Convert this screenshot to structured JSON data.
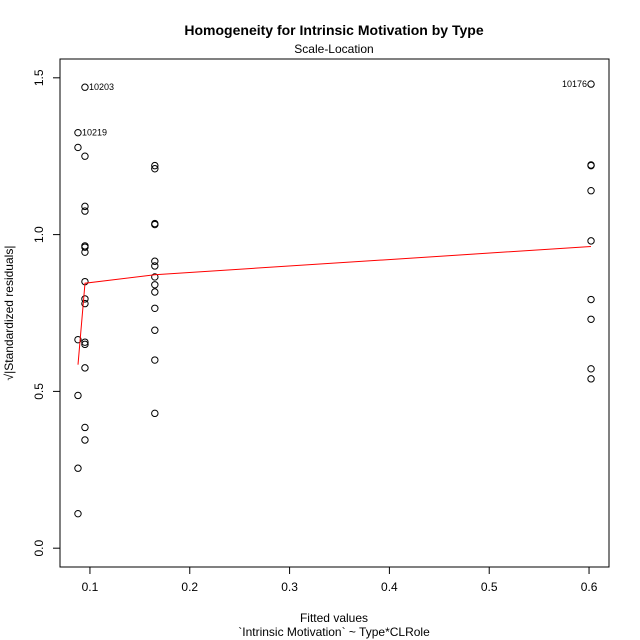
{
  "chart_data": {
    "type": "scatter",
    "title": "Homogeneity for Intrinsic Motivation by Type",
    "subtitle": "Scale-Location",
    "xlabel": "Fitted values",
    "xlabel2": "`Intrinsic Motivation` ~ Type*CLRole",
    "ylabel": "√|Standardized residuals|",
    "xlim": [
      0.07,
      0.62
    ],
    "ylim": [
      -0.06,
      1.56
    ],
    "x_ticks": [
      "0.1",
      "0.2",
      "0.3",
      "0.4",
      "0.5",
      "0.6"
    ],
    "x_tick_values": [
      0.1,
      0.2,
      0.3,
      0.4,
      0.5,
      0.6
    ],
    "y_ticks": [
      "0.0",
      "0.5",
      "1.0",
      "1.5"
    ],
    "y_tick_values": [
      0.0,
      0.5,
      1.0,
      1.5
    ],
    "grid": false,
    "point_color": "#000000",
    "line_color": "#ff0000",
    "points": [
      {
        "x": 0.088,
        "y": 0.11
      },
      {
        "x": 0.088,
        "y": 0.255
      },
      {
        "x": 0.088,
        "y": 0.487
      },
      {
        "x": 0.088,
        "y": 0.665
      },
      {
        "x": 0.088,
        "y": 1.278
      },
      {
        "x": 0.088,
        "y": 1.325,
        "label": "10219"
      },
      {
        "x": 0.095,
        "y": 0.345
      },
      {
        "x": 0.095,
        "y": 0.385
      },
      {
        "x": 0.095,
        "y": 0.575
      },
      {
        "x": 0.095,
        "y": 0.65
      },
      {
        "x": 0.095,
        "y": 0.657
      },
      {
        "x": 0.095,
        "y": 0.78
      },
      {
        "x": 0.095,
        "y": 0.795
      },
      {
        "x": 0.095,
        "y": 0.85
      },
      {
        "x": 0.095,
        "y": 0.944
      },
      {
        "x": 0.095,
        "y": 0.96
      },
      {
        "x": 0.095,
        "y": 0.964
      },
      {
        "x": 0.095,
        "y": 1.075
      },
      {
        "x": 0.095,
        "y": 1.09
      },
      {
        "x": 0.095,
        "y": 1.25
      },
      {
        "x": 0.095,
        "y": 1.47,
        "label": "10203"
      },
      {
        "x": 0.165,
        "y": 0.43
      },
      {
        "x": 0.165,
        "y": 0.6
      },
      {
        "x": 0.165,
        "y": 0.695
      },
      {
        "x": 0.165,
        "y": 0.765
      },
      {
        "x": 0.165,
        "y": 0.817
      },
      {
        "x": 0.165,
        "y": 0.84
      },
      {
        "x": 0.165,
        "y": 0.865
      },
      {
        "x": 0.165,
        "y": 0.9
      },
      {
        "x": 0.165,
        "y": 0.915
      },
      {
        "x": 0.165,
        "y": 1.032
      },
      {
        "x": 0.165,
        "y": 1.035
      },
      {
        "x": 0.165,
        "y": 1.21
      },
      {
        "x": 0.165,
        "y": 1.22
      },
      {
        "x": 0.602,
        "y": 0.54
      },
      {
        "x": 0.602,
        "y": 0.572
      },
      {
        "x": 0.602,
        "y": 0.73
      },
      {
        "x": 0.602,
        "y": 0.793
      },
      {
        "x": 0.602,
        "y": 0.98
      },
      {
        "x": 0.602,
        "y": 1.14
      },
      {
        "x": 0.602,
        "y": 1.22
      },
      {
        "x": 0.602,
        "y": 1.222
      },
      {
        "x": 0.602,
        "y": 1.48,
        "label": "10176"
      }
    ],
    "smooth_line": [
      {
        "x": 0.088,
        "y": 0.585
      },
      {
        "x": 0.095,
        "y": 0.845
      },
      {
        "x": 0.165,
        "y": 0.872
      },
      {
        "x": 0.602,
        "y": 0.962
      }
    ]
  }
}
